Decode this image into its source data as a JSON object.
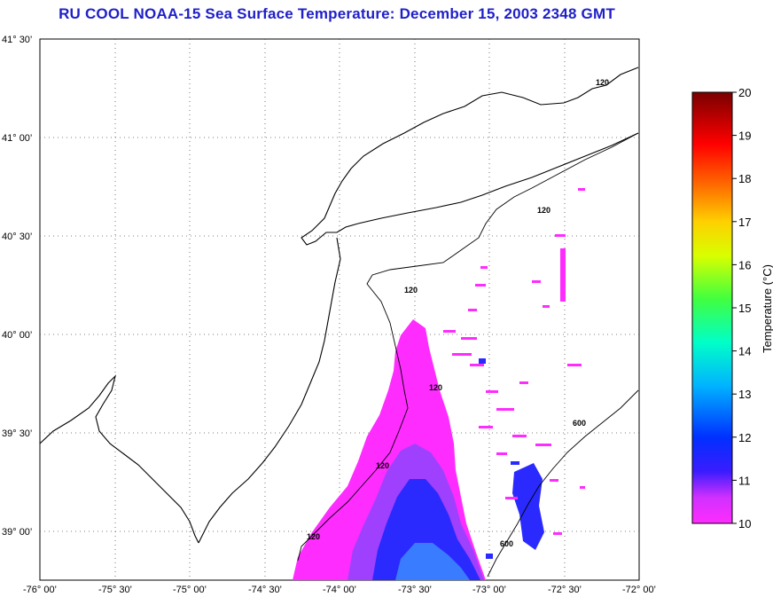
{
  "title": "RU COOL  NOAA-15  Sea Surface Temperature:  December 15, 2003 2348 GMT",
  "map": {
    "lon_range": [
      -76.0,
      -72.0
    ],
    "lat_range": [
      38.75,
      41.5
    ],
    "lat_labels": [
      "41° 30’",
      "41° 00’",
      "40° 30’",
      "40° 00’",
      "39° 30’",
      "39° 00’"
    ],
    "lon_labels": [
      "-76° 00’",
      "-75° 30’",
      "-75° 00’",
      "-74° 30’",
      "-74° 00’",
      "-73° 30’",
      "-73° 00’",
      "-72° 30’",
      "-72° 00’"
    ],
    "grid": true,
    "bathymetry_contours": [
      "120",
      "600"
    ]
  },
  "colorbar": {
    "label": "Temperature (°C)",
    "ticks": [
      "20",
      "19",
      "18",
      "17",
      "16",
      "15",
      "14",
      "13",
      "12",
      "11",
      "10"
    ],
    "range": [
      10,
      20
    ],
    "colors": [
      "#ff00ff",
      "#2a2aff",
      "#00c8ff",
      "#00ffa0",
      "#b4ff00",
      "#ffff00",
      "#ffa000",
      "#ff2000",
      "#a00000",
      "#6a0000"
    ]
  }
}
